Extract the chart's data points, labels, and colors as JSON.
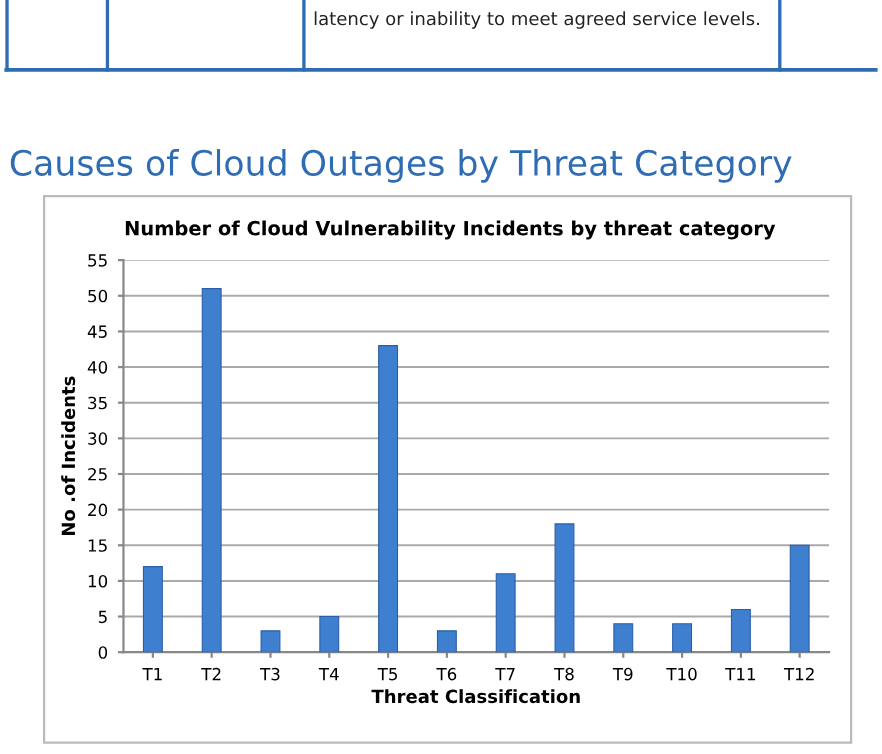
{
  "chart_data": {
    "type": "bar",
    "title": "Causes of Cloud Outages by Threat Category",
    "subtitle": "Number of Cloud Vulnerability Incidents by threat category",
    "xlabel": "Threat Classification",
    "ylabel": "No .of Incidents",
    "annotations": [
      "latency or inability to meet agreed service levels."
    ],
    "categories": [
      "T1",
      "T2",
      "T3",
      "T4",
      "T5",
      "T6",
      "T7",
      "T8",
      "T9",
      "T10",
      "T11",
      "T12"
    ],
    "values": [
      12,
      51,
      3,
      5,
      43,
      3,
      11,
      18,
      4,
      4,
      6,
      15
    ],
    "color": "#3f7fcf",
    "ylim": [
      0,
      55
    ],
    "yticks": [
      0,
      5,
      10,
      15,
      20,
      25,
      30,
      35,
      40,
      45,
      50,
      55
    ],
    "grid": "y"
  }
}
